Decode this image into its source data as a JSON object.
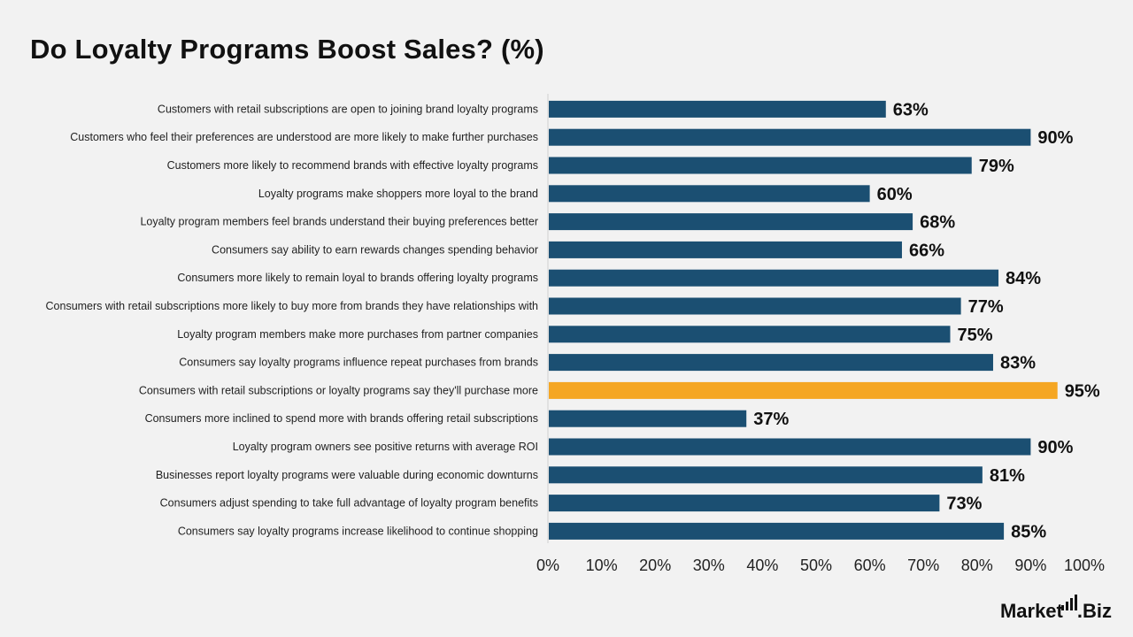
{
  "chart_data": {
    "type": "bar",
    "orientation": "horizontal",
    "title": "Do Loyalty Programs Boost Sales? (%)",
    "categories": [
      "Customers with retail subscriptions are open to joining brand loyalty programs",
      "Customers who feel their preferences are understood are more likely to make further purchases",
      "Customers more likely to recommend brands with effective loyalty programs",
      "Loyalty programs make shoppers more loyal to the brand",
      "Loyalty program members feel brands understand their buying preferences better",
      "Consumers say ability to earn rewards changes spending behavior",
      "Consumers more likely to remain loyal to brands offering loyalty programs",
      "Consumers with retail subscriptions more likely to buy more from brands they have relationships with",
      "Loyalty program members make more purchases from partner companies",
      "Consumers say loyalty programs influence repeat purchases from brands",
      "Consumers with retail subscriptions or loyalty programs say they'll purchase more",
      "Consumers more inclined to spend more with brands offering retail subscriptions",
      "Loyalty program owners see positive returns with average ROI",
      "Businesses report loyalty programs were valuable during economic downturns",
      "Consumers adjust spending to take full advantage of loyalty program benefits",
      "Consumers say loyalty programs increase likelihood to continue shopping"
    ],
    "values": [
      63,
      90,
      79,
      60,
      68,
      66,
      84,
      77,
      75,
      83,
      95,
      37,
      90,
      81,
      73,
      85
    ],
    "value_labels": [
      "63%",
      "90%",
      "79%",
      "60%",
      "68%",
      "66%",
      "84%",
      "77%",
      "75%",
      "83%",
      "95%",
      "37%",
      "90%",
      "81%",
      "73%",
      "85%"
    ],
    "highlight_index": 10,
    "xlim": [
      0,
      100
    ],
    "xticks": [
      0,
      10,
      20,
      30,
      40,
      50,
      60,
      70,
      80,
      90,
      100
    ],
    "xtick_labels": [
      "0%",
      "10%",
      "20%",
      "30%",
      "40%",
      "50%",
      "60%",
      "70%",
      "80%",
      "90%",
      "100%"
    ],
    "grid": false,
    "colors": {
      "bar": "#1b4f72",
      "highlight": "#f5a623"
    }
  },
  "logo": {
    "text_main": "Market",
    "text_suffix": ".Biz"
  }
}
